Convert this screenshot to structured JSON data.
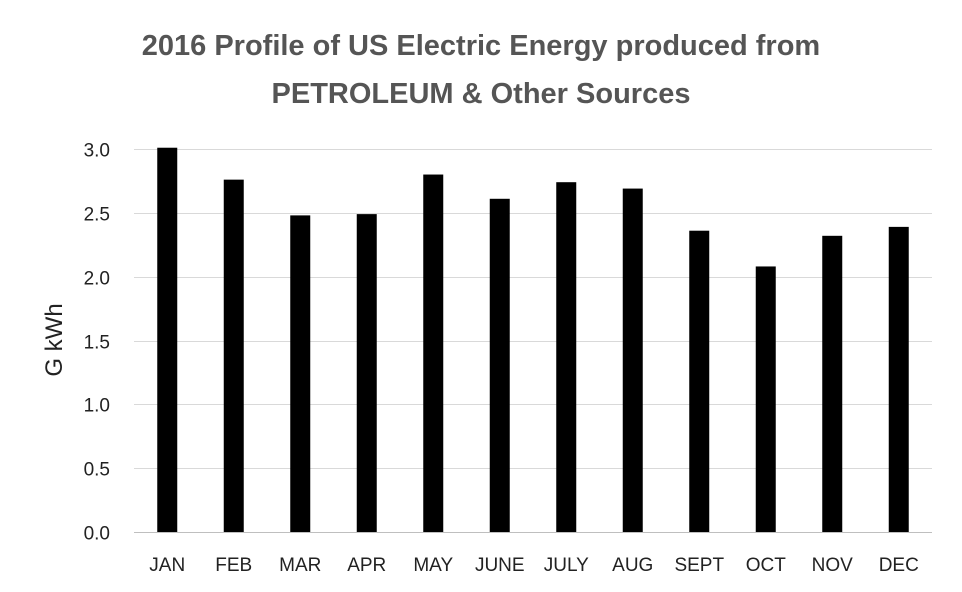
{
  "chart_data": {
    "type": "bar",
    "title_lines": [
      "2016 Profile of US Electric Energy produced from",
      "PETROLEUM & Other Sources"
    ],
    "xlabel": "",
    "ylabel": "G kWh",
    "categories": [
      "JAN",
      "FEB",
      "MAR",
      "APR",
      "MAY",
      "JUNE",
      "JULY",
      "AUG",
      "SEPT",
      "OCT",
      "NOV",
      "DEC"
    ],
    "values": [
      3.01,
      2.76,
      2.48,
      2.49,
      2.8,
      2.61,
      2.74,
      2.69,
      2.36,
      2.08,
      2.32,
      2.39
    ],
    "ylim": [
      0,
      3.0
    ],
    "yticks": [
      "0.0",
      "0.5",
      "1.0",
      "1.5",
      "2.0",
      "2.5",
      "3.0"
    ],
    "ytick_values": [
      0,
      0.5,
      1.0,
      1.5,
      2.0,
      2.5,
      3.0
    ],
    "grid": true,
    "legend": "none",
    "bar_color": "#000000",
    "grid_color": "#d9d9d9",
    "title_color": "#555555"
  }
}
